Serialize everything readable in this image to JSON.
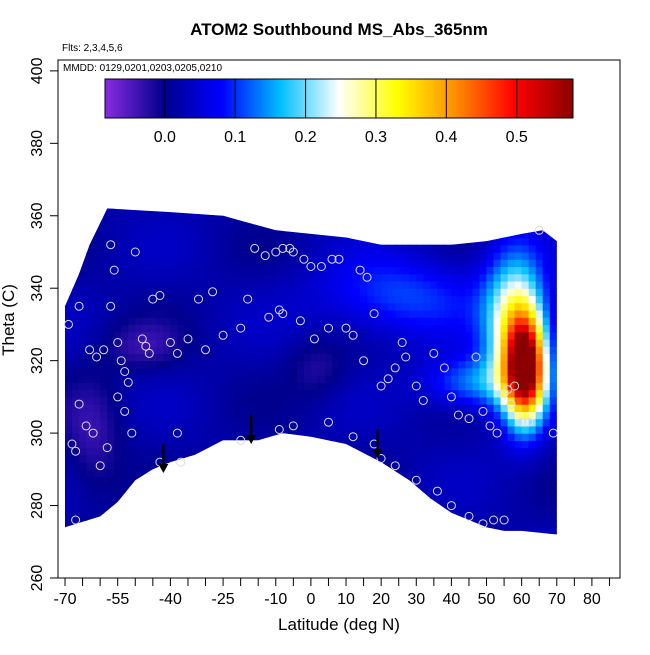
{
  "chart_data": {
    "type": "heatmap",
    "title": "ATOM2 Southbound MS_Abs_365nm",
    "flights_note": "Flts: 2,3,4,5,6",
    "dates_note": "MMDD: 0129,0201,0203,0205,0210",
    "xlabel": "Latitude (deg N)",
    "ylabel": "Theta (C)",
    "xlim": [
      -72,
      88
    ],
    "ylim": [
      260,
      403
    ],
    "x_ticks_major": [
      -70,
      -55,
      -40,
      -25,
      -10,
      0,
      10,
      20,
      30,
      40,
      50,
      60,
      70,
      80
    ],
    "x_ticks_minor": [
      -65,
      -60,
      -50,
      -45,
      -35,
      -30,
      -20,
      -15,
      -5,
      5,
      15,
      25,
      35,
      45,
      55,
      65,
      75,
      85
    ],
    "y_ticks": [
      260,
      280,
      300,
      320,
      340,
      360,
      380,
      400
    ],
    "colorbar": {
      "min": -0.085,
      "max": 0.58,
      "ticks": [
        0.0,
        0.1,
        0.2,
        0.3,
        0.4,
        0.5
      ],
      "tick_labels": [
        "0.0",
        "0.1",
        "0.2",
        "0.3",
        "0.4",
        "0.5"
      ],
      "colors": [
        "#8a2be2",
        "#00008b",
        "#0000ff",
        "#00bfff",
        "#ffffff",
        "#ffff00",
        "#ff8c00",
        "#ff0000",
        "#8b0000"
      ]
    },
    "domain": {
      "top": [
        [
          -70,
          335
        ],
        [
          -66,
          344
        ],
        [
          -63,
          352
        ],
        [
          -60,
          358
        ],
        [
          -58,
          362
        ],
        [
          -40,
          361
        ],
        [
          -25,
          360
        ],
        [
          -10,
          356
        ],
        [
          0,
          355
        ],
        [
          10,
          354
        ],
        [
          20,
          352
        ],
        [
          30,
          352
        ],
        [
          40,
          352
        ],
        [
          50,
          353
        ],
        [
          60,
          355
        ],
        [
          66,
          356
        ],
        [
          70,
          353
        ]
      ],
      "bottom": [
        [
          -70,
          274
        ],
        [
          -60,
          277
        ],
        [
          -55,
          281
        ],
        [
          -50,
          287
        ],
        [
          -45,
          290
        ],
        [
          -40,
          292
        ],
        [
          -33,
          294
        ],
        [
          -25,
          298
        ],
        [
          -15,
          298
        ],
        [
          -8,
          300
        ],
        [
          0,
          299
        ],
        [
          10,
          297
        ],
        [
          20,
          292
        ],
        [
          28,
          287
        ],
        [
          34,
          282
        ],
        [
          40,
          278
        ],
        [
          50,
          274
        ],
        [
          55,
          273
        ],
        [
          60,
          273
        ],
        [
          70,
          272
        ]
      ]
    },
    "background_value": 0.02,
    "features": [
      {
        "name": "plume",
        "value": 0.52,
        "lat": 61,
        "theta": 318,
        "sx": 4,
        "sy": 10
      },
      {
        "name": "streak",
        "value": 0.25,
        "lat": 58,
        "theta": 330,
        "sx": 6,
        "sy": 14
      },
      {
        "name": "ridge",
        "value": 0.12,
        "lat": 47,
        "theta": 314,
        "sx": 10,
        "sy": 5
      },
      {
        "name": "upper-mid",
        "value": 0.09,
        "lat": 25,
        "theta": 338,
        "sx": 16,
        "sy": 8
      },
      {
        "name": "low-left",
        "value": -0.05,
        "lat": -62,
        "theta": 298,
        "sx": 6,
        "sy": 12
      },
      {
        "name": "mid-left",
        "value": -0.045,
        "lat": -48,
        "theta": 324,
        "sx": 8,
        "sy": 5
      },
      {
        "name": "center",
        "value": -0.04,
        "lat": 2,
        "theta": 318,
        "sx": 6,
        "sy": 6
      }
    ],
    "observations": [
      [
        -69,
        330
      ],
      [
        -68,
        297
      ],
      [
        -67,
        295
      ],
      [
        -66,
        335
      ],
      [
        -67,
        276
      ],
      [
        -63,
        323
      ],
      [
        -61,
        321
      ],
      [
        -59,
        323
      ],
      [
        -57,
        352
      ],
      [
        -56,
        345
      ],
      [
        -57,
        335
      ],
      [
        -55,
        325
      ],
      [
        -54,
        320
      ],
      [
        -53,
        317
      ],
      [
        -52,
        314
      ],
      [
        -50,
        350
      ],
      [
        -48,
        326
      ],
      [
        -47,
        324
      ],
      [
        -46,
        322
      ],
      [
        -45,
        337
      ],
      [
        -43,
        338
      ],
      [
        -40,
        325
      ],
      [
        -38,
        322
      ],
      [
        -37,
        292
      ],
      [
        -35,
        326
      ],
      [
        -32,
        337
      ],
      [
        -30,
        323
      ],
      [
        -28,
        339
      ],
      [
        -25,
        327
      ],
      [
        -20,
        329
      ],
      [
        -18,
        337
      ],
      [
        -13,
        349
      ],
      [
        -10,
        350
      ],
      [
        -8,
        351
      ],
      [
        -6,
        351
      ],
      [
        -5,
        350
      ],
      [
        -2,
        348
      ],
      [
        0,
        346
      ],
      [
        3,
        346
      ],
      [
        6,
        348
      ],
      [
        8,
        348
      ],
      [
        -16,
        351
      ],
      [
        -12,
        332
      ],
      [
        -9,
        334
      ],
      [
        -8,
        333
      ],
      [
        -3,
        331
      ],
      [
        1,
        326
      ],
      [
        5,
        329
      ],
      [
        10,
        329
      ],
      [
        12,
        327
      ],
      [
        14,
        345
      ],
      [
        16,
        343
      ],
      [
        15,
        320
      ],
      [
        18,
        333
      ],
      [
        20,
        313
      ],
      [
        22,
        315
      ],
      [
        24,
        318
      ],
      [
        26,
        325
      ],
      [
        27,
        321
      ],
      [
        30,
        313
      ],
      [
        32,
        309
      ],
      [
        35,
        322
      ],
      [
        38,
        318
      ],
      [
        40,
        310
      ],
      [
        42,
        305
      ],
      [
        45,
        304
      ],
      [
        47,
        321
      ],
      [
        49,
        306
      ],
      [
        51,
        302
      ],
      [
        53,
        300
      ],
      [
        55,
        311
      ],
      [
        56,
        312
      ],
      [
        57,
        308
      ],
      [
        58,
        313
      ],
      [
        60,
        303
      ],
      [
        62,
        303
      ],
      [
        65,
        356
      ],
      [
        69,
        300
      ],
      [
        -66,
        308
      ],
      [
        -64,
        302
      ],
      [
        -62,
        300
      ],
      [
        -60,
        291
      ],
      [
        -58,
        296
      ],
      [
        -55,
        310
      ],
      [
        -53,
        306
      ],
      [
        -51,
        300
      ],
      [
        -43,
        292
      ],
      [
        -38,
        300
      ],
      [
        -20,
        298
      ],
      [
        -9,
        301
      ],
      [
        -5,
        302
      ],
      [
        5,
        303
      ],
      [
        12,
        299
      ],
      [
        18,
        297
      ],
      [
        20,
        293
      ],
      [
        24,
        291
      ],
      [
        30,
        287
      ],
      [
        36,
        284
      ],
      [
        40,
        280
      ],
      [
        45,
        277
      ],
      [
        49,
        275
      ],
      [
        52,
        276
      ],
      [
        55,
        276
      ]
    ],
    "arrows": [
      {
        "lat": -42,
        "theta_from": 297,
        "theta_to": 289
      },
      {
        "lat": -17,
        "theta_from": 305,
        "theta_to": 297
      },
      {
        "lat": 19,
        "theta_from": 301,
        "theta_to": 293
      }
    ]
  }
}
